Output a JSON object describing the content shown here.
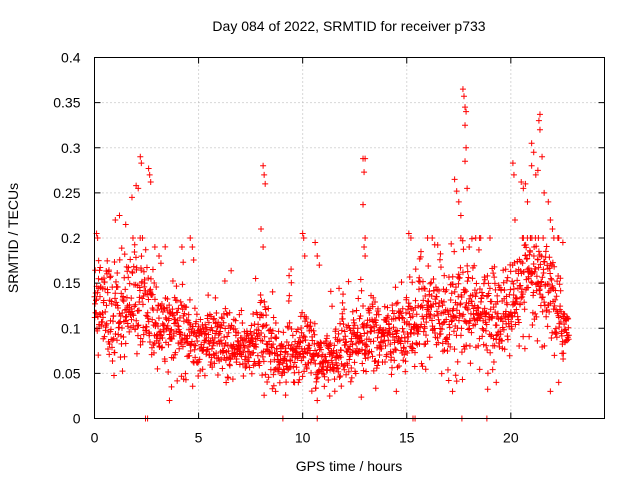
{
  "chart_data": {
    "type": "scatter",
    "title": "Day 084 of 2022, SRMTID for receiver p733",
    "xlabel": "GPS time / hours",
    "ylabel": "SRMTID / TECUs",
    "xlim": [
      0,
      24.5
    ],
    "ylim": [
      0,
      0.4
    ],
    "x_ticks": [
      0,
      5,
      10,
      15,
      20
    ],
    "x_tick_labels": [
      "0",
      "5",
      "10",
      "15",
      "20"
    ],
    "y_ticks": [
      0,
      0.05,
      0.1,
      0.15,
      0.2,
      0.25,
      0.3,
      0.35,
      0.4
    ],
    "y_tick_labels": [
      "0",
      "0.05",
      "0.1",
      "0.15",
      "0.2",
      "0.25",
      "0.3",
      "0.35",
      "0.4"
    ],
    "grid": true,
    "marker": "plus",
    "color": "#ff0000",
    "trend": [
      {
        "x": 0.0,
        "y": 0.12,
        "spread": 0.045
      },
      {
        "x": 1.0,
        "y": 0.12,
        "spread": 0.05
      },
      {
        "x": 2.0,
        "y": 0.14,
        "spread": 0.06
      },
      {
        "x": 3.0,
        "y": 0.1,
        "spread": 0.04
      },
      {
        "x": 4.0,
        "y": 0.1,
        "spread": 0.04
      },
      {
        "x": 5.0,
        "y": 0.09,
        "spread": 0.035
      },
      {
        "x": 6.0,
        "y": 0.08,
        "spread": 0.035
      },
      {
        "x": 7.0,
        "y": 0.075,
        "spread": 0.03
      },
      {
        "x": 8.0,
        "y": 0.09,
        "spread": 0.04
      },
      {
        "x": 9.0,
        "y": 0.065,
        "spread": 0.025
      },
      {
        "x": 10.0,
        "y": 0.08,
        "spread": 0.04
      },
      {
        "x": 11.0,
        "y": 0.06,
        "spread": 0.025
      },
      {
        "x": 12.0,
        "y": 0.08,
        "spread": 0.035
      },
      {
        "x": 13.0,
        "y": 0.09,
        "spread": 0.04
      },
      {
        "x": 14.0,
        "y": 0.085,
        "spread": 0.035
      },
      {
        "x": 15.0,
        "y": 0.1,
        "spread": 0.04
      },
      {
        "x": 16.0,
        "y": 0.12,
        "spread": 0.045
      },
      {
        "x": 17.0,
        "y": 0.11,
        "spread": 0.05
      },
      {
        "x": 18.0,
        "y": 0.12,
        "spread": 0.05
      },
      {
        "x": 19.0,
        "y": 0.11,
        "spread": 0.045
      },
      {
        "x": 20.0,
        "y": 0.12,
        "spread": 0.05
      },
      {
        "x": 21.0,
        "y": 0.15,
        "spread": 0.06
      },
      {
        "x": 22.0,
        "y": 0.13,
        "spread": 0.05
      },
      {
        "x": 22.8,
        "y": 0.09,
        "spread": 0.03
      }
    ],
    "sample_interval_hours": 0.012,
    "spikes": [
      {
        "x": 0.1,
        "y": 0.205
      },
      {
        "x": 0.15,
        "y": 0.2
      },
      {
        "x": 0.2,
        "y": 0.175
      },
      {
        "x": 1.0,
        "y": 0.22
      },
      {
        "x": 1.2,
        "y": 0.225
      },
      {
        "x": 1.5,
        "y": 0.215
      },
      {
        "x": 1.8,
        "y": 0.245
      },
      {
        "x": 2.0,
        "y": 0.258
      },
      {
        "x": 2.1,
        "y": 0.255
      },
      {
        "x": 2.2,
        "y": 0.29
      },
      {
        "x": 2.25,
        "y": 0.283
      },
      {
        "x": 2.6,
        "y": 0.277
      },
      {
        "x": 2.65,
        "y": 0.27
      },
      {
        "x": 2.7,
        "y": 0.262
      },
      {
        "x": 2.9,
        "y": 0.19
      },
      {
        "x": 3.1,
        "y": 0.18
      },
      {
        "x": 4.2,
        "y": 0.19
      },
      {
        "x": 4.6,
        "y": 0.2
      },
      {
        "x": 4.7,
        "y": 0.19
      },
      {
        "x": 8.1,
        "y": 0.28
      },
      {
        "x": 8.15,
        "y": 0.27
      },
      {
        "x": 8.2,
        "y": 0.26
      },
      {
        "x": 8.0,
        "y": 0.21
      },
      {
        "x": 8.1,
        "y": 0.19
      },
      {
        "x": 10.0,
        "y": 0.205
      },
      {
        "x": 10.05,
        "y": 0.2
      },
      {
        "x": 10.1,
        "y": 0.18
      },
      {
        "x": 10.6,
        "y": 0.195
      },
      {
        "x": 10.7,
        "y": 0.18
      },
      {
        "x": 10.8,
        "y": 0.17
      },
      {
        "x": 12.9,
        "y": 0.288
      },
      {
        "x": 13.0,
        "y": 0.288
      },
      {
        "x": 12.95,
        "y": 0.273
      },
      {
        "x": 12.9,
        "y": 0.237
      },
      {
        "x": 13.0,
        "y": 0.2
      },
      {
        "x": 12.95,
        "y": 0.19
      },
      {
        "x": 13.0,
        "y": 0.18
      },
      {
        "x": 15.1,
        "y": 0.205
      },
      {
        "x": 15.2,
        "y": 0.2
      },
      {
        "x": 16.0,
        "y": 0.2
      },
      {
        "x": 17.3,
        "y": 0.265
      },
      {
        "x": 17.4,
        "y": 0.252
      },
      {
        "x": 17.5,
        "y": 0.24
      },
      {
        "x": 17.6,
        "y": 0.225
      },
      {
        "x": 17.7,
        "y": 0.365
      },
      {
        "x": 17.75,
        "y": 0.357
      },
      {
        "x": 17.8,
        "y": 0.345
      },
      {
        "x": 17.85,
        "y": 0.34
      },
      {
        "x": 17.8,
        "y": 0.325
      },
      {
        "x": 17.85,
        "y": 0.3
      },
      {
        "x": 17.8,
        "y": 0.285
      },
      {
        "x": 17.9,
        "y": 0.255
      },
      {
        "x": 17.6,
        "y": 0.2
      },
      {
        "x": 18.0,
        "y": 0.19
      },
      {
        "x": 18.5,
        "y": 0.2
      },
      {
        "x": 19.0,
        "y": 0.2
      },
      {
        "x": 20.1,
        "y": 0.283
      },
      {
        "x": 20.15,
        "y": 0.27
      },
      {
        "x": 20.2,
        "y": 0.22
      },
      {
        "x": 20.5,
        "y": 0.262
      },
      {
        "x": 20.6,
        "y": 0.255
      },
      {
        "x": 20.7,
        "y": 0.26
      },
      {
        "x": 20.8,
        "y": 0.24
      },
      {
        "x": 21.0,
        "y": 0.305
      },
      {
        "x": 21.1,
        "y": 0.295
      },
      {
        "x": 21.0,
        "y": 0.28
      },
      {
        "x": 21.2,
        "y": 0.27
      },
      {
        "x": 21.3,
        "y": 0.275
      },
      {
        "x": 21.35,
        "y": 0.33
      },
      {
        "x": 21.4,
        "y": 0.337
      },
      {
        "x": 21.4,
        "y": 0.32
      },
      {
        "x": 21.5,
        "y": 0.29
      },
      {
        "x": 21.6,
        "y": 0.25
      },
      {
        "x": 21.8,
        "y": 0.24
      },
      {
        "x": 21.9,
        "y": 0.22
      },
      {
        "x": 22.0,
        "y": 0.21
      },
      {
        "x": 22.3,
        "y": 0.2
      },
      {
        "x": 22.5,
        "y": 0.195
      },
      {
        "x": 3.6,
        "y": 0.02
      },
      {
        "x": 3.7,
        "y": 0.035
      },
      {
        "x": 10.7,
        "y": 0.02
      },
      {
        "x": 11.3,
        "y": 0.025
      },
      {
        "x": 14.5,
        "y": 0.03
      },
      {
        "x": 17.2,
        "y": 0.03
      },
      {
        "x": 19.3,
        "y": 0.04
      },
      {
        "x": 21.9,
        "y": 0.03
      },
      {
        "x": 22.3,
        "y": 0.04
      }
    ],
    "zero_points": [
      2.45,
      2.55,
      9.05,
      10.7,
      15.3,
      15.4,
      17.65,
      18.85
    ]
  }
}
